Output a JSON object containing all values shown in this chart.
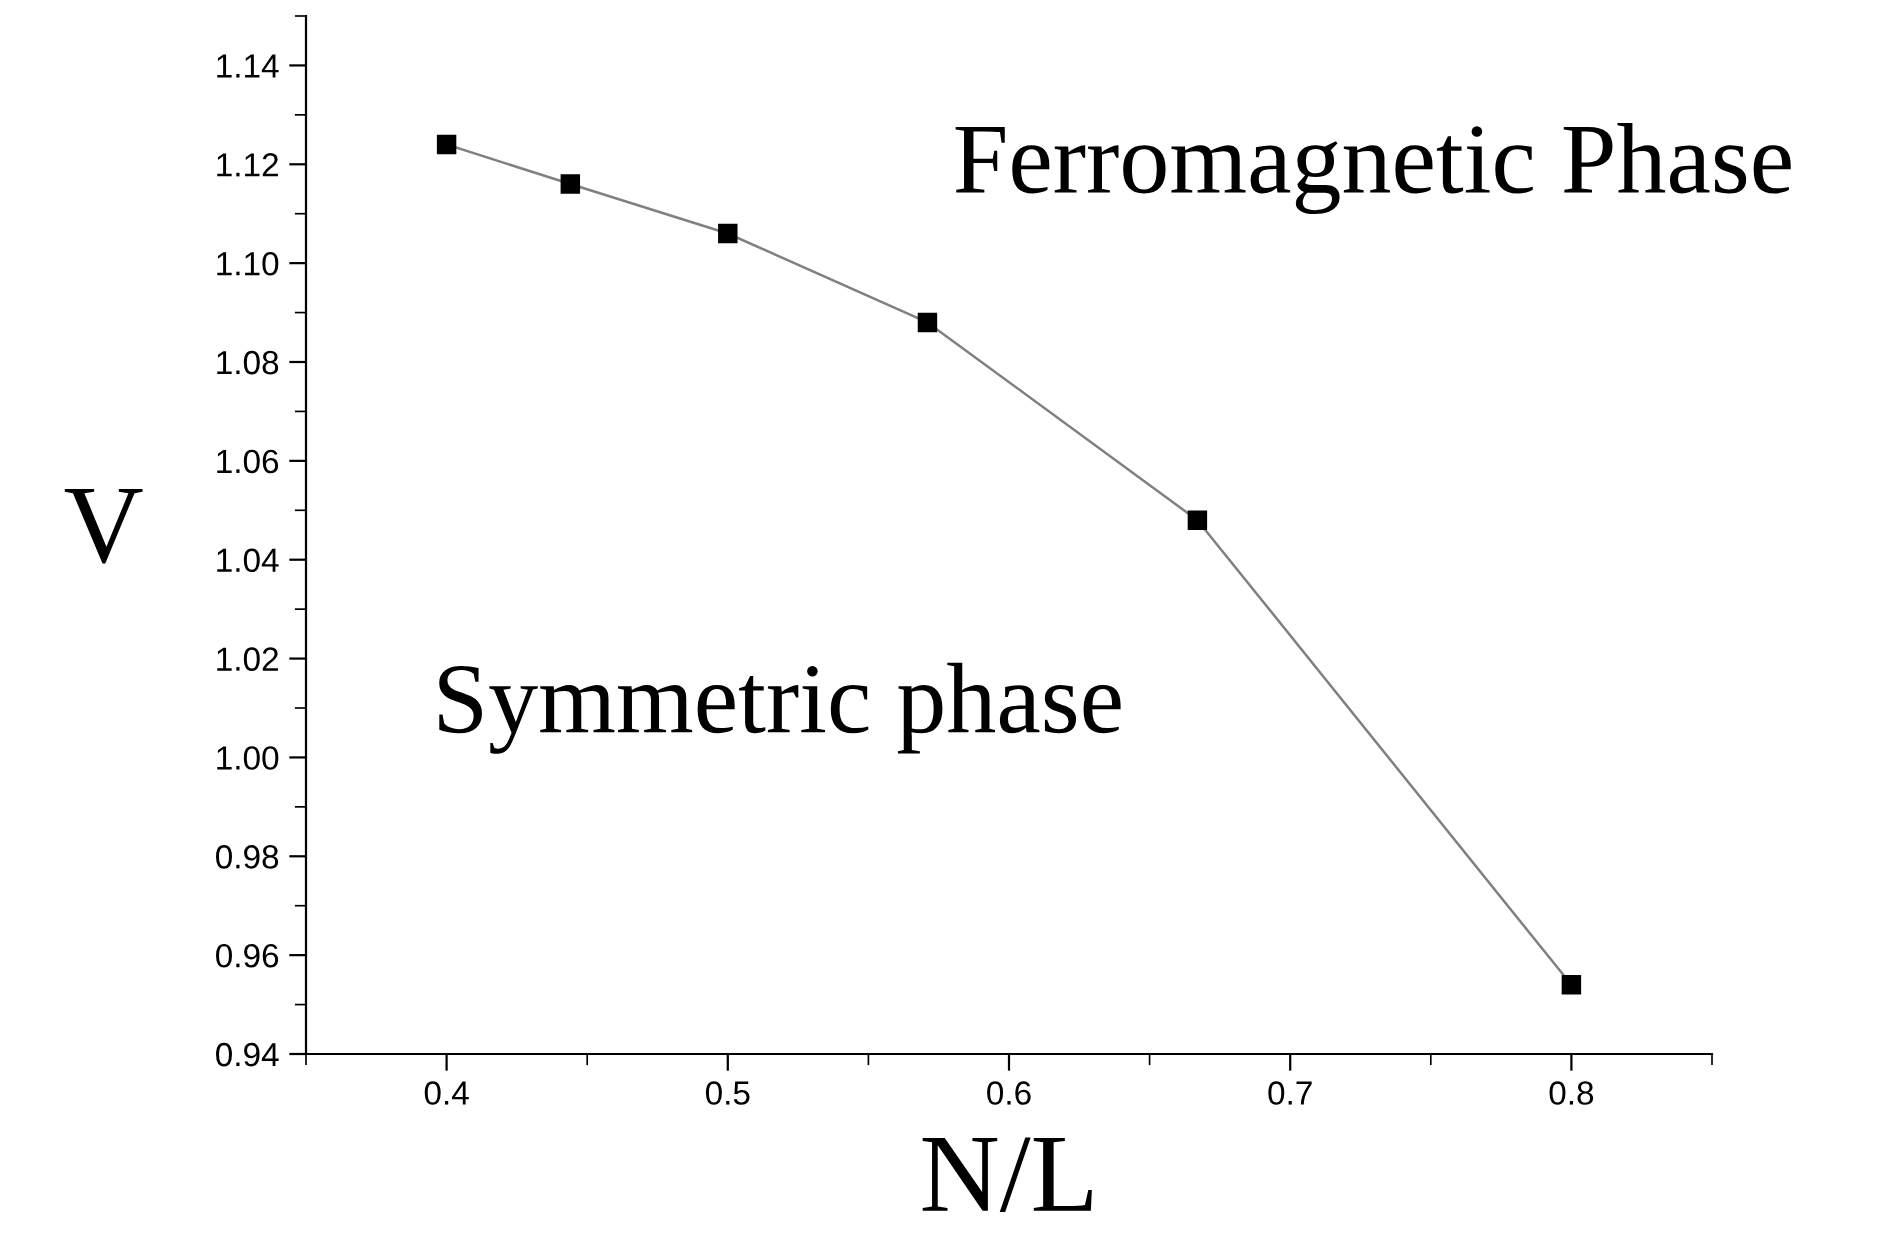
{
  "chart_data": {
    "type": "line",
    "xlabel": "N/L",
    "ylabel": "V",
    "x": [
      0.4,
      0.444,
      0.5,
      0.571,
      0.667,
      0.8
    ],
    "series": [
      {
        "color": "#000000",
        "values": [
          1.124,
          1.116,
          1.106,
          1.088,
          1.048,
          0.954
        ]
      }
    ],
    "marker": "square",
    "line_style": "solid",
    "xlim": [
      0.35,
      0.85
    ],
    "xticks": [
      0.4,
      0.5,
      0.6,
      0.7,
      0.8
    ],
    "ylim": [
      0.94,
      1.15
    ],
    "yticks": [
      {
        "value": 0.94,
        "label": "0.94"
      },
      {
        "value": 0.96,
        "label": "0.96"
      },
      {
        "value": 0.98,
        "label": "0.98"
      },
      {
        "value": 1.0,
        "label": "1.00"
      },
      {
        "value": 1.02,
        "label": "1.02"
      },
      {
        "value": 1.04,
        "label": "1.04"
      },
      {
        "value": 1.06,
        "label": "1.06"
      },
      {
        "value": 1.08,
        "label": "1.08"
      },
      {
        "value": 1.1,
        "label": "1.10"
      },
      {
        "value": 1.12,
        "label": "1.12"
      },
      {
        "value": 1.14,
        "label": "1.14"
      }
    ],
    "annotations": [
      "Ferromagnetic Phase",
      "Symmetric phase"
    ],
    "grid": false,
    "legend": false
  }
}
